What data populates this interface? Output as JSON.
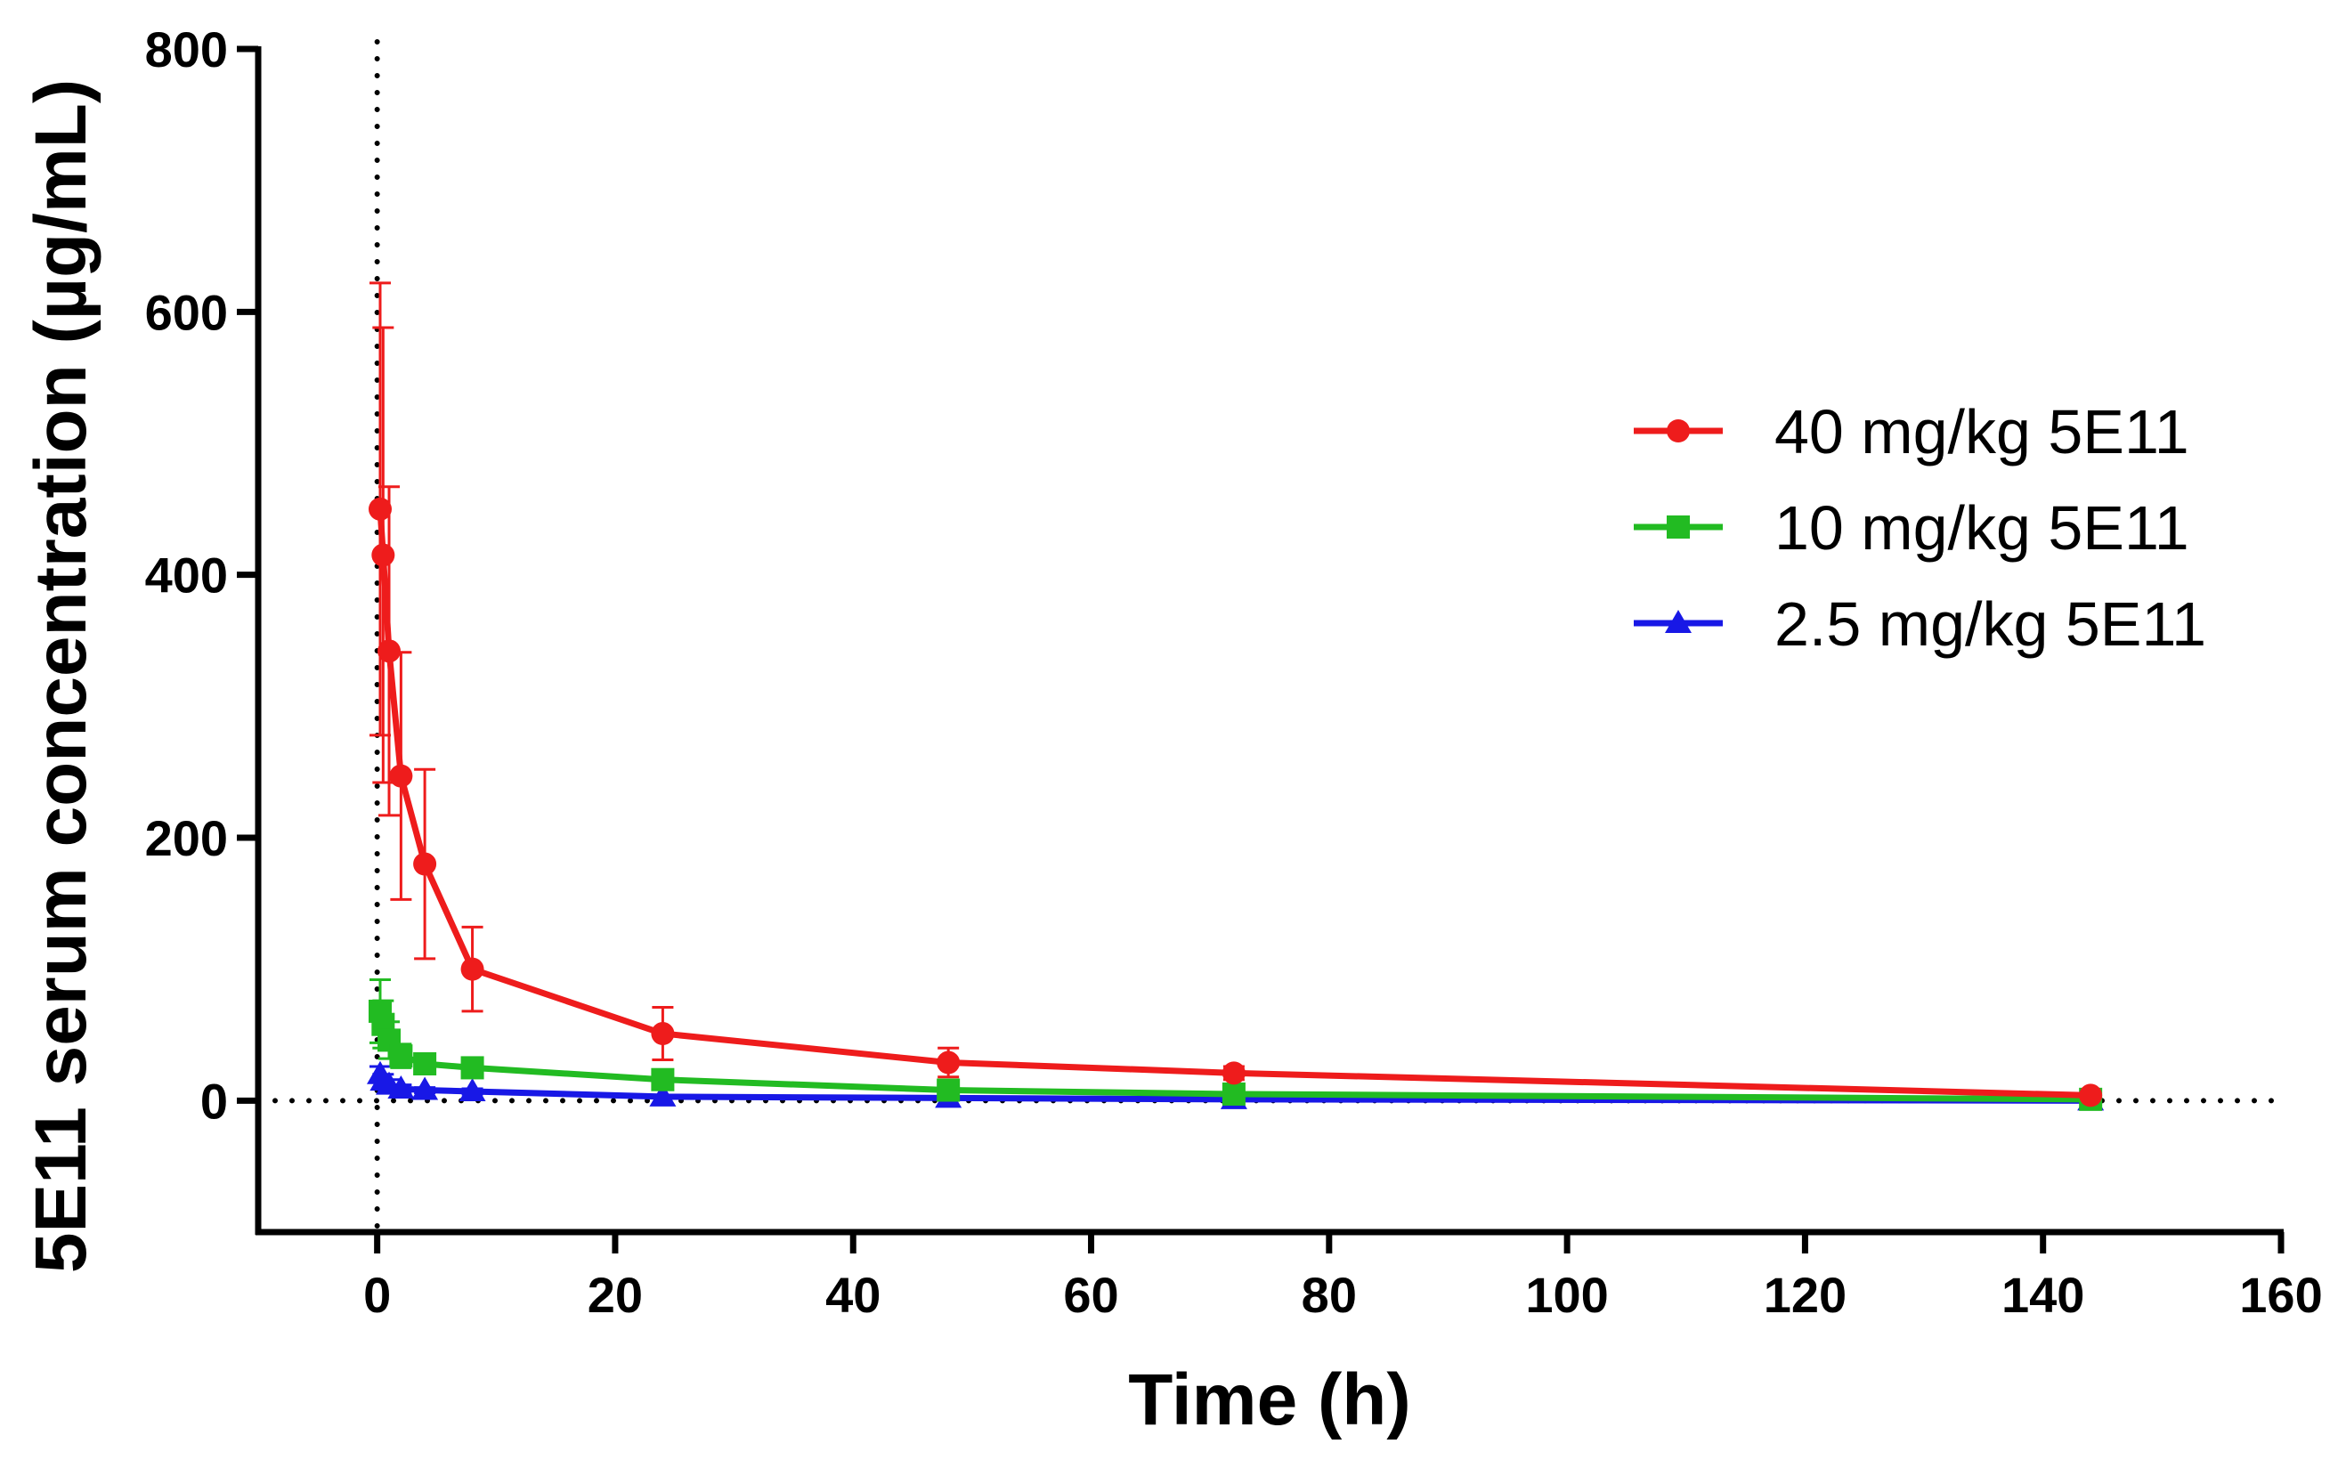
{
  "chart_data": {
    "type": "line",
    "title": "",
    "xlabel": "Time (h)",
    "ylabel": "5E11 serum concentration (µg/mL)",
    "xlim": [
      -10,
      160
    ],
    "ylim": [
      -100,
      800
    ],
    "xticks": [
      0,
      20,
      40,
      60,
      80,
      100,
      120,
      140,
      160
    ],
    "yticks": [
      0,
      200,
      400,
      600,
      800
    ],
    "xtick_labels": [
      "0",
      "20",
      "40",
      "60",
      "80",
      "100",
      "120",
      "140",
      "160"
    ],
    "ytick_labels": [
      "0",
      "200",
      "400",
      "600",
      "800"
    ],
    "reference_lines": {
      "x": 0,
      "y": 0,
      "style": "dotted"
    },
    "grid": false,
    "legend_position": "right",
    "series": [
      {
        "name": "40 mg/kg 5E11",
        "color": "#ee1c1c",
        "marker": "circle",
        "x": [
          0.25,
          0.5,
          1,
          2,
          4,
          8,
          24,
          48,
          72,
          144
        ],
        "y": [
          450,
          415,
          342,
          247,
          180,
          100,
          51,
          29,
          21,
          4
        ],
        "err": [
          172,
          173,
          125,
          94,
          72,
          32,
          20,
          11,
          5,
          2
        ]
      },
      {
        "name": "10 mg/kg 5E11",
        "color": "#22bb22",
        "marker": "square",
        "x": [
          0.25,
          0.5,
          1,
          2,
          4,
          8,
          24,
          48,
          72,
          144
        ],
        "y": [
          68,
          58,
          46,
          34,
          28,
          25,
          16,
          8,
          5,
          1
        ],
        "err": [
          24,
          18,
          14,
          9,
          7,
          6,
          5,
          3,
          2,
          1
        ]
      },
      {
        "name": "2.5 mg/kg 5E11",
        "color": "#1818e6",
        "marker": "triangle",
        "x": [
          0.25,
          0.5,
          1,
          2,
          4,
          8,
          24,
          48,
          72,
          144
        ],
        "y": [
          20,
          15,
          12,
          9,
          8,
          7,
          3,
          2,
          1,
          0
        ],
        "err": [
          6,
          5,
          4,
          3,
          2,
          2,
          1,
          1,
          1,
          0
        ]
      }
    ]
  }
}
